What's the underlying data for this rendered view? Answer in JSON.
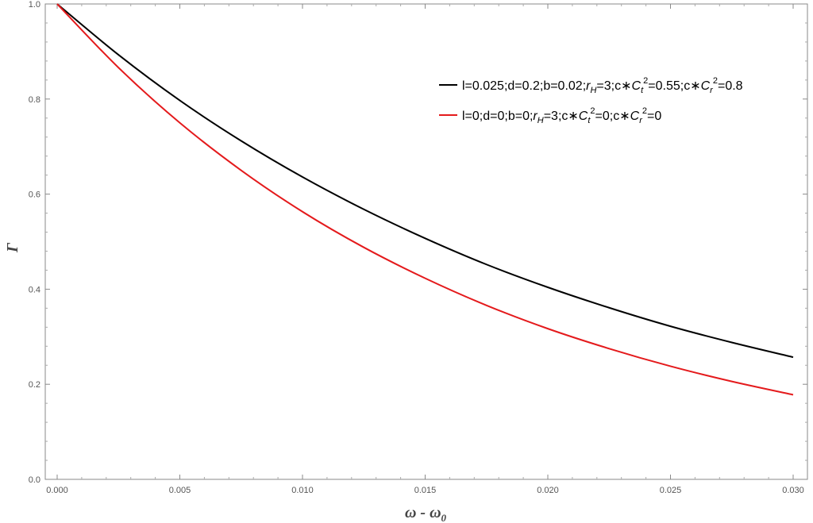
{
  "chart_data": {
    "type": "line",
    "title": "",
    "xlabel": "ω - ω",
    "xlabel_sub": "0",
    "ylabel": "Γ",
    "xlim": [
      0,
      0.03
    ],
    "ylim": [
      0,
      1.0
    ],
    "x_ticks": [
      0.0,
      0.005,
      0.01,
      0.015,
      0.02,
      0.025,
      0.03
    ],
    "x_tick_labels": [
      "0.000",
      "0.005",
      "0.010",
      "0.015",
      "0.020",
      "0.025",
      "0.030"
    ],
    "y_ticks": [
      0.0,
      0.2,
      0.4,
      0.6,
      0.8,
      1.0
    ],
    "y_tick_labels": [
      "0.0",
      "0.2",
      "0.4",
      "0.6",
      "0.8",
      "1.0"
    ],
    "grid": false,
    "legend_placement": "top-right",
    "series": [
      {
        "name": "l=0.025;d=0.2;b=0.02;rH=3;c∗Ct2=0.55;c∗Cr2=0.8",
        "legend_parts": {
          "p1": "l=0.025;d=0.2;b=0.02;",
          "p2": "r",
          "p2sub": "H",
          "p3": "=3;c∗",
          "p4": "C",
          "p4sub": "t",
          "p4sup": "2",
          "p5": "=0.55;c∗",
          "p6": "C",
          "p6sub": "r",
          "p6sup": "2",
          "p7": "=0.8"
        },
        "color": "#000000",
        "x": [
          0.0,
          0.0025,
          0.005,
          0.0075,
          0.01,
          0.0125,
          0.015,
          0.0175,
          0.02,
          0.0225,
          0.025,
          0.0275,
          0.03
        ],
        "y": [
          1.0,
          0.893,
          0.797,
          0.712,
          0.636,
          0.568,
          0.507,
          0.452,
          0.404,
          0.361,
          0.322,
          0.288,
          0.257
        ]
      },
      {
        "name": "l=0;d=0;b=0;rH=3;c∗Ct2=0;c∗Cr2=0",
        "legend_parts": {
          "p1": "l=0;d=0;b=0;",
          "p2": "r",
          "p2sub": "H",
          "p3": "=3;c∗",
          "p4": "C",
          "p4sub": "t",
          "p4sup": "2",
          "p5": "=0;c∗",
          "p6": "C",
          "p6sub": "r",
          "p6sup": "2",
          "p7": "=0"
        },
        "color": "#e41a1c",
        "x": [
          0.0,
          0.0025,
          0.005,
          0.0075,
          0.01,
          0.0125,
          0.015,
          0.0175,
          0.02,
          0.0225,
          0.025,
          0.0275,
          0.03
        ],
        "y": [
          1.0,
          0.866,
          0.75,
          0.65,
          0.563,
          0.488,
          0.423,
          0.366,
          0.317,
          0.275,
          0.238,
          0.206,
          0.178
        ]
      }
    ]
  }
}
